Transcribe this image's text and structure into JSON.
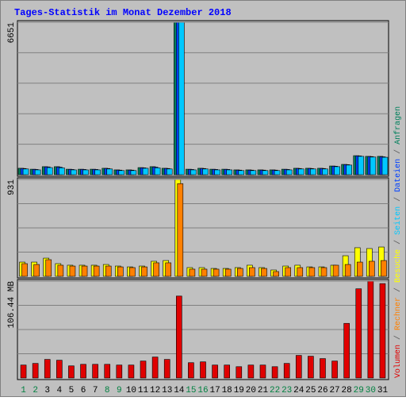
{
  "chart_data": [
    {
      "type": "bar",
      "title": "Tages-Statistik im Monat Dezember 2018",
      "ylim": [
        0,
        6651
      ],
      "yticks": [
        6651
      ],
      "series": [
        {
          "name": "Anfragen",
          "color": "#00805c",
          "values": [
            280,
            240,
            350,
            350,
            240,
            240,
            240,
            280,
            210,
            210,
            310,
            350,
            280,
            6651,
            240,
            280,
            240,
            240,
            210,
            210,
            210,
            210,
            240,
            280,
            280,
            280,
            380,
            450,
            830,
            800,
            800
          ]
        },
        {
          "name": "Dateien",
          "color": "#0040ff",
          "values": [
            270,
            230,
            340,
            330,
            230,
            230,
            230,
            270,
            200,
            200,
            300,
            330,
            270,
            6651,
            230,
            270,
            230,
            230,
            200,
            200,
            200,
            200,
            230,
            270,
            270,
            270,
            370,
            440,
            820,
            790,
            780
          ]
        },
        {
          "name": "Seiten",
          "color": "#00c8ff",
          "values": [
            250,
            210,
            310,
            300,
            210,
            210,
            210,
            250,
            180,
            180,
            280,
            300,
            250,
            6651,
            210,
            250,
            210,
            210,
            180,
            180,
            180,
            180,
            210,
            250,
            250,
            250,
            350,
            420,
            800,
            770,
            760
          ]
        }
      ]
    },
    {
      "type": "bar",
      "ylim": [
        0,
        931
      ],
      "yticks": [
        931
      ],
      "series": [
        {
          "name": "Besuche",
          "color": "#ffff00",
          "values": [
            137,
            137,
            175,
            122,
            107,
            107,
            107,
            114,
            99,
            91,
            99,
            145,
            152,
            931,
            84,
            84,
            76,
            76,
            84,
            107,
            84,
            61,
            99,
            107,
            91,
            91,
            107,
            198,
            275,
            267,
            282
          ]
        },
        {
          "name": "Rechner",
          "color": "#ff8000",
          "values": [
            122,
            114,
            160,
            107,
            99,
            99,
            99,
            99,
            91,
            84,
            91,
            130,
            130,
            891,
            69,
            69,
            69,
            69,
            76,
            84,
            76,
            46,
            84,
            84,
            84,
            84,
            107,
            114,
            137,
            145,
            152
          ]
        }
      ]
    },
    {
      "type": "bar",
      "ylim": [
        0,
        106.44
      ],
      "yticks": [
        {
          "value": 106.44,
          "label": "106.44 MB"
        }
      ],
      "categories": [
        "1",
        "2",
        "3",
        "4",
        "5",
        "6",
        "7",
        "8",
        "9",
        "10",
        "11",
        "12",
        "13",
        "14",
        "15",
        "16",
        "17",
        "18",
        "19",
        "20",
        "21",
        "22",
        "23",
        "24",
        "25",
        "26",
        "27",
        "28",
        "29",
        "30",
        "31"
      ],
      "category_colors": [
        "#008040",
        "#008040",
        "#000000",
        "#000000",
        "#000000",
        "#000000",
        "#000000",
        "#008040",
        "#008040",
        "#000000",
        "#000000",
        "#000000",
        "#000000",
        "#000000",
        "#008040",
        "#008040",
        "#000000",
        "#000000",
        "#000000",
        "#000000",
        "#000000",
        "#008040",
        "#008040",
        "#000000",
        "#000000",
        "#000000",
        "#000000",
        "#000000",
        "#008040",
        "#008040",
        "#000000"
      ],
      "series": [
        {
          "name": "Volumen",
          "color": "#e00000",
          "values": [
            14.2,
            16,
            20.4,
            19.5,
            13.3,
            15,
            15,
            15,
            14.2,
            14.2,
            18.6,
            23,
            20.4,
            90,
            16.8,
            17.7,
            14.2,
            14.2,
            12.4,
            14.2,
            14.2,
            12.4,
            16,
            24.8,
            23.9,
            21.3,
            18.6,
            60,
            98,
            106.44,
            103.7
          ]
        }
      ]
    }
  ],
  "legend_separator": " / "
}
